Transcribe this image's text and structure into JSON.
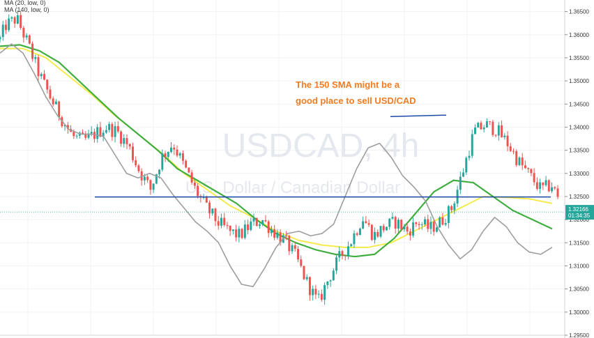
{
  "chart": {
    "watermark_symbol": "USDCAD, 4h",
    "watermark_name": "U.S. Dollar / Canadian Dollar",
    "legend": [
      {
        "text": "MA (20, low, 0)"
      },
      {
        "text": "MA (140, low, 0)"
      }
    ],
    "annotation_line1": "The 150 SMA might be a",
    "annotation_line2": "good place to sell USD/CAD"
  },
  "colors": {
    "up_candle": "#26a69a",
    "down_candle": "#ef5350",
    "ma20": "#9e9e9e",
    "ma_green": "#3fae3f",
    "ma_yellow": "#f5eb4c",
    "support_line": "#1a47a8",
    "annotation": "#f47b20"
  },
  "chart_data": {
    "type": "candlestick",
    "y_axis_ticks": [
      "1.36500",
      "1.36000",
      "1.35500",
      "1.35000",
      "1.34500",
      "1.34000",
      "1.33500",
      "1.33000",
      "1.32500",
      "1.32000",
      "1.31500",
      "1.31000",
      "1.30500",
      "1.30000",
      "1.29500"
    ],
    "ylim": [
      1.295,
      1.3675
    ],
    "current_price": "1.32166",
    "countdown": "01:34:35",
    "horizontal_level": 1.3249,
    "top_line": {
      "price": 1.3423,
      "x_start": 0.7,
      "x_end": 0.8
    },
    "candles": {
      "count": 190,
      "close_path_x": [
        0,
        0.01,
        0.03,
        0.05,
        0.07,
        0.09,
        0.11,
        0.13,
        0.15,
        0.17,
        0.19,
        0.21,
        0.23,
        0.25,
        0.27,
        0.29,
        0.31,
        0.33,
        0.35,
        0.37,
        0.39,
        0.41,
        0.43,
        0.45,
        0.47,
        0.49,
        0.51,
        0.53,
        0.55,
        0.57,
        0.59,
        0.61,
        0.63,
        0.65,
        0.67,
        0.69,
        0.71,
        0.73,
        0.75,
        0.77,
        0.79,
        0.81,
        0.83,
        0.85,
        0.87,
        0.89,
        0.91,
        0.93,
        0.95,
        0.97,
        0.99,
        1.0
      ],
      "close_path_y": [
        1.359,
        1.362,
        1.3635,
        1.358,
        1.3515,
        1.3465,
        1.342,
        1.338,
        1.337,
        1.3385,
        1.34,
        1.339,
        1.336,
        1.3305,
        1.3265,
        1.3335,
        1.3365,
        1.3315,
        1.3265,
        1.3225,
        1.3195,
        1.3175,
        1.3165,
        1.319,
        1.32,
        1.3175,
        1.3155,
        1.312,
        1.3065,
        1.302,
        1.3075,
        1.312,
        1.3155,
        1.3205,
        1.3165,
        1.3185,
        1.3195,
        1.3175,
        1.3195,
        1.318,
        1.3195,
        1.3225,
        1.3305,
        1.339,
        1.3405,
        1.3395,
        1.3365,
        1.3325,
        1.3295,
        1.3265,
        1.3275,
        1.3245
      ]
    },
    "ma20_y": [
      1.356,
      1.358,
      1.356,
      1.3515,
      1.3465,
      1.3425,
      1.3395,
      1.3385,
      1.3385,
      1.338,
      1.334,
      1.33,
      1.329,
      1.33,
      1.329,
      1.3255,
      1.3225,
      1.3195,
      1.3175,
      1.315,
      1.31,
      1.306,
      1.3055,
      1.3095,
      1.314,
      1.317,
      1.3175,
      1.3165,
      1.317,
      1.319,
      1.325,
      1.331,
      1.3355,
      1.3365,
      1.3335,
      1.3295,
      1.327,
      1.324,
      1.3185,
      1.3145,
      1.3115,
      1.3135,
      1.3175,
      1.3205,
      1.3185,
      1.315,
      1.313,
      1.3125,
      1.314
    ],
    "ma_green_y": [
      1.3575,
      1.3578,
      1.3565,
      1.354,
      1.35,
      1.346,
      1.342,
      1.3385,
      1.335,
      1.331,
      1.3285,
      1.326,
      1.3235,
      1.32,
      1.317,
      1.315,
      1.3135,
      1.3125,
      1.312,
      1.3125,
      1.316,
      1.321,
      1.326,
      1.3285,
      1.328,
      1.325,
      1.322,
      1.32,
      1.318
    ],
    "ma_yellow_y": [
      1.357,
      1.357,
      1.355,
      1.351,
      1.347,
      1.3425,
      1.3385,
      1.3345,
      1.33,
      1.3265,
      1.323,
      1.3205,
      1.3175,
      1.3155,
      1.3145,
      1.314,
      1.314,
      1.315,
      1.3175,
      1.32,
      1.3225,
      1.325,
      1.3248,
      1.3245,
      1.3235
    ]
  }
}
